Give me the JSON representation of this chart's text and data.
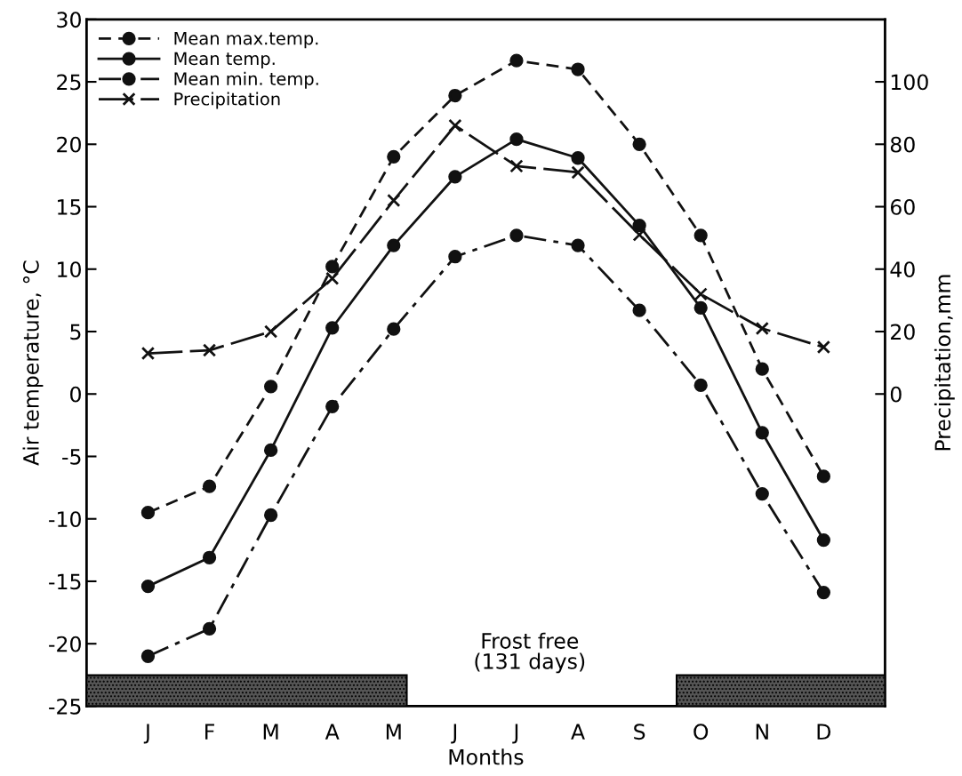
{
  "chart_data": {
    "type": "line",
    "xlabel": "Months",
    "ylabel": "Air temperature, °C",
    "y2label": "Precipitation,mm",
    "categories": [
      "J",
      "F",
      "M",
      "A",
      "M",
      "J",
      "J",
      "A",
      "S",
      "O",
      "N",
      "D"
    ],
    "ylim": [
      -25,
      30
    ],
    "yticks": [
      -25,
      -20,
      -15,
      -10,
      -5,
      0,
      5,
      10,
      15,
      20,
      25,
      30
    ],
    "y2lim": [
      -100,
      120
    ],
    "y2ticks": [
      0,
      20,
      40,
      60,
      80,
      100
    ],
    "series": [
      {
        "name": "Mean max.temp.",
        "color": "#111111",
        "marker": "circle",
        "line_style": "dashed",
        "values": [
          -9.5,
          -7.4,
          0.6,
          10.2,
          19,
          23.9,
          26.7,
          26,
          20,
          12.7,
          2,
          -6.6
        ]
      },
      {
        "name": "Mean temp.",
        "color": "#111111",
        "marker": "circle",
        "line_style": "solid",
        "values": [
          -15.4,
          -13.1,
          -4.5,
          5.3,
          11.9,
          17.4,
          20.4,
          18.9,
          13.5,
          6.9,
          -3.1,
          -11.7
        ]
      },
      {
        "name": "Mean min. temp.",
        "color": "#111111",
        "marker": "circle",
        "line_style": "dashdot",
        "values": [
          -21,
          -18.8,
          -9.7,
          -1,
          5.2,
          11,
          12.7,
          11.9,
          6.7,
          0.7,
          -8,
          -15.9
        ]
      },
      {
        "name": "Precipitation",
        "color": "#111111",
        "marker": "cross",
        "line_style": "longdash",
        "axis": "y2",
        "values": [
          13,
          14,
          20,
          37,
          62,
          86,
          73,
          71,
          51,
          32,
          21,
          15
        ]
      }
    ],
    "annotations": [
      "Frost free\n(131 days)"
    ],
    "legend": "top left",
    "grid": false
  }
}
